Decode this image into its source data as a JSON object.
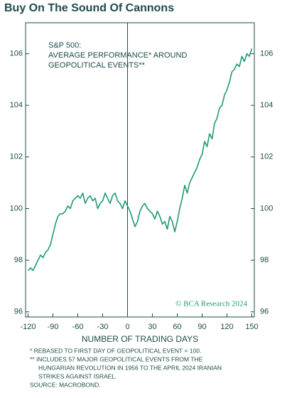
{
  "chart_data": {
    "type": "line",
    "title": "Buy On The Sound Of Cannons",
    "annotations": [
      "S&P 500:",
      "AVERAGE PERFORMANCE* AROUND",
      "GEOPOLITICAL EVENTS**"
    ],
    "watermark": "© BCA Research 2024",
    "xlabel": "NUMBER OF TRADING DAYS",
    "footnotes": [
      "*  REBASED TO FIRST DAY OF GEOPOLITICAL EVENT = 100.",
      "** INCLUDES 57 MAJOR GEOPOLITICAL EVENTS FROM THE",
      "HUNGARIAN REVOLUTION IN 1956 TO THE APRIL 2024 IRANIAN",
      "STRIKES AGAINST ISRAEL.",
      "SOURCE: MACROBOND."
    ],
    "x": [
      -120,
      -117,
      -114,
      -111,
      -108,
      -105,
      -102,
      -99,
      -96,
      -93,
      -90,
      -87,
      -84,
      -81,
      -78,
      -75,
      -72,
      -69,
      -66,
      -63,
      -60,
      -57,
      -54,
      -51,
      -48,
      -45,
      -42,
      -39,
      -36,
      -33,
      -30,
      -27,
      -24,
      -21,
      -18,
      -15,
      -12,
      -9,
      -6,
      -3,
      0,
      3,
      6,
      9,
      12,
      15,
      18,
      21,
      24,
      27,
      30,
      33,
      36,
      39,
      42,
      45,
      48,
      51,
      54,
      57,
      60,
      63,
      66,
      69,
      72,
      75,
      78,
      81,
      84,
      87,
      90,
      93,
      96,
      99,
      102,
      105,
      108,
      111,
      114,
      117,
      120,
      123,
      126,
      129,
      132,
      135,
      138,
      141,
      144,
      147,
      150
    ],
    "series": [
      {
        "name": "S&P 500",
        "color": "#1f9a76",
        "values": [
          97.6,
          97.7,
          97.6,
          97.8,
          98.0,
          98.2,
          98.1,
          98.3,
          98.4,
          98.6,
          99.0,
          99.4,
          99.7,
          99.8,
          99.8,
          99.9,
          100.1,
          100.0,
          100.3,
          100.4,
          100.5,
          100.4,
          100.6,
          100.2,
          100.4,
          100.5,
          100.3,
          100.4,
          100.0,
          100.2,
          100.3,
          100.6,
          100.4,
          100.2,
          100.5,
          100.6,
          100.3,
          100.2,
          100.0,
          100.3,
          100.1,
          99.9,
          99.6,
          99.3,
          99.5,
          99.9,
          100.1,
          100.2,
          100.0,
          99.9,
          99.8,
          99.6,
          99.9,
          99.7,
          99.4,
          99.5,
          99.2,
          99.7,
          99.5,
          99.1,
          99.5,
          100.0,
          100.4,
          100.9,
          100.6,
          101.0,
          101.2,
          101.4,
          101.6,
          101.9,
          102.1,
          102.6,
          102.4,
          102.9,
          102.7,
          103.3,
          103.5,
          103.9,
          104.0,
          104.4,
          104.6,
          104.9,
          105.3,
          105.4,
          105.6,
          105.5,
          105.9,
          105.7,
          106.0,
          105.9,
          106.2
        ]
      }
    ],
    "xlim": [
      -123,
      153
    ],
    "xticks": [
      -120,
      -90,
      -60,
      -30,
      0,
      30,
      60,
      90,
      120,
      150
    ],
    "ylim": [
      95.8,
      107.2
    ],
    "yticks": [
      96,
      98,
      100,
      102,
      104,
      106
    ],
    "y2lim": [
      95.8,
      107.2
    ],
    "y2ticks": [
      96,
      98,
      100,
      102,
      104,
      106
    ],
    "vline": 0
  }
}
